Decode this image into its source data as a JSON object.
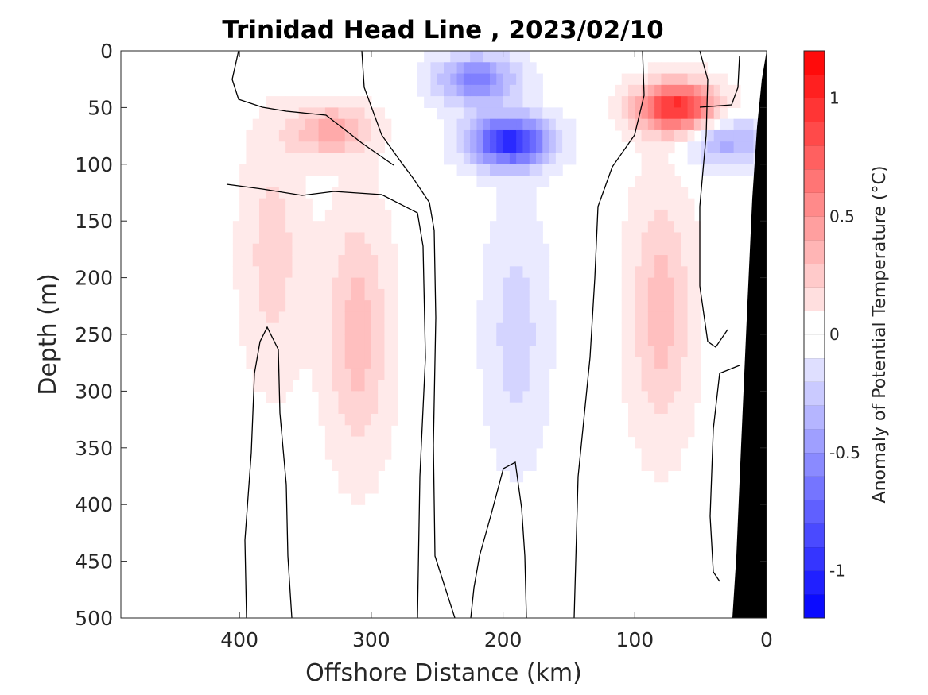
{
  "chart_data": {
    "type": "heatmap",
    "title": "Trinidad Head Line , 2023/02/10",
    "xlabel": "Offshore Distance (km)",
    "ylabel": "Depth (m)",
    "xlim": [
      490,
      0
    ],
    "ylim": [
      0,
      500
    ],
    "x_reversed": true,
    "y_reversed": true,
    "x_ticks": [
      400,
      300,
      200,
      100,
      0
    ],
    "y_ticks": [
      0,
      50,
      100,
      150,
      200,
      250,
      300,
      350,
      400,
      450,
      500
    ],
    "colorbar": {
      "label": "Anomaly of Potential Temperature (°C)",
      "range": [
        -1.2,
        1.2
      ],
      "step": 0.1,
      "ticks": [
        -1,
        -0.5,
        0,
        0.5,
        1
      ],
      "tick_labels": [
        "-1",
        "-0.5",
        "0",
        "0.5",
        "1"
      ],
      "colormap": "blue-white-red",
      "min_color": "#0000ff",
      "max_color": "#ff0000"
    },
    "data_extent_x_km": [
      0,
      410
    ],
    "land_mask_color": "#000000",
    "features": [
      {
        "x": 330,
        "y": 70,
        "value": 0.4
      },
      {
        "x": 195,
        "y": 80,
        "value": -1.0
      },
      {
        "x": 220,
        "y": 25,
        "value": -0.6
      },
      {
        "x": 68,
        "y": 50,
        "value": 1.0
      },
      {
        "x": 30,
        "y": 80,
        "value": -0.4
      },
      {
        "x": 310,
        "y": 250,
        "value": 0.3
      },
      {
        "x": 80,
        "y": 230,
        "value": 0.3
      },
      {
        "x": 190,
        "y": 250,
        "value": -0.2
      },
      {
        "x": 375,
        "y": 180,
        "value": 0.2
      }
    ],
    "zero_contour_color": "#000000"
  }
}
